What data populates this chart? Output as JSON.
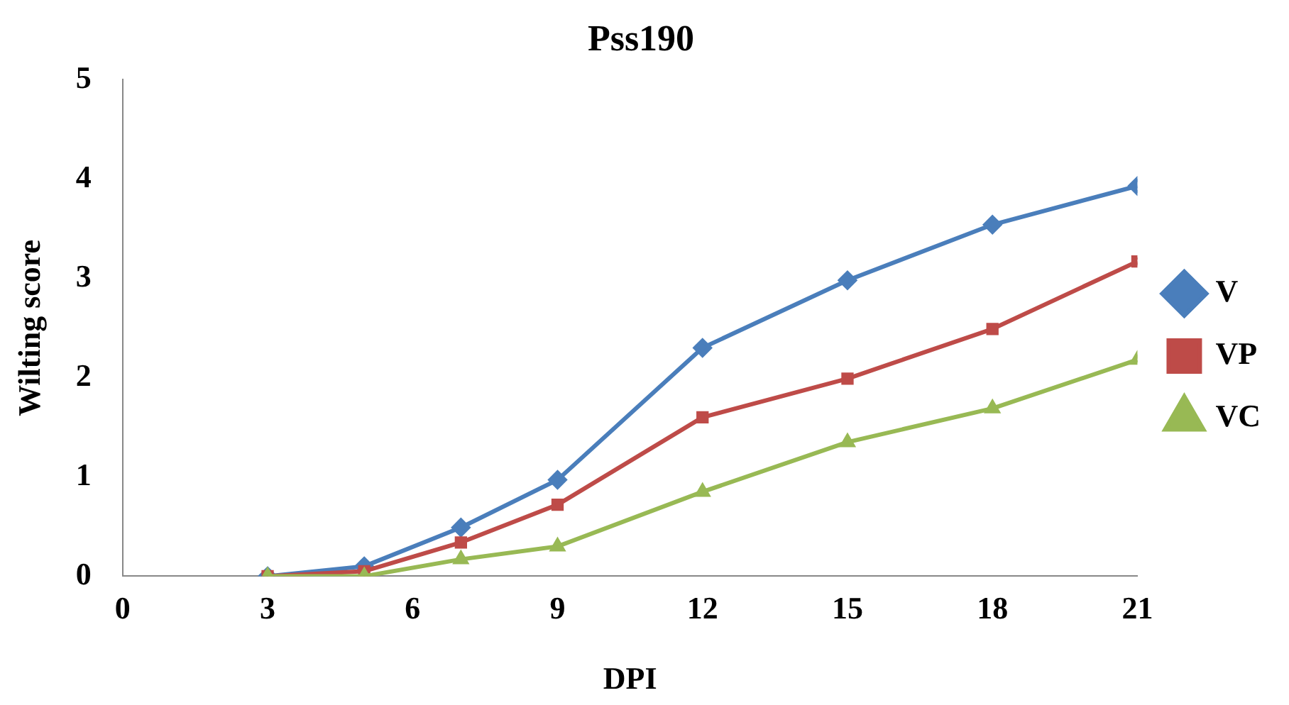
{
  "chart_data": {
    "type": "line",
    "title": "Pss190",
    "xlabel": "DPI",
    "ylabel": "Wilting score",
    "x": [
      3,
      5,
      7,
      9,
      12,
      15,
      18,
      21
    ],
    "series": [
      {
        "name": "V",
        "color": "#4a7ebb",
        "marker": "diamond",
        "values": [
          0,
          0.1,
          0.49,
          0.97,
          2.3,
          2.98,
          3.54,
          3.93
        ]
      },
      {
        "name": "VP",
        "color": "#be4b48",
        "marker": "square",
        "values": [
          0,
          0.05,
          0.34,
          0.72,
          1.6,
          1.99,
          2.49,
          3.17
        ]
      },
      {
        "name": "VC",
        "color": "#98b954",
        "marker": "triangle",
        "values": [
          0,
          0,
          0.17,
          0.3,
          0.85,
          1.35,
          1.69,
          2.18
        ]
      }
    ],
    "xlim": [
      0,
      21
    ],
    "xticks": [
      0,
      3,
      6,
      9,
      12,
      15,
      18,
      21
    ],
    "ylim": [
      0,
      5
    ],
    "yticks": [
      0,
      1,
      2,
      3,
      4,
      5
    ],
    "grid": false,
    "legend": "right",
    "line_style": "solid"
  }
}
